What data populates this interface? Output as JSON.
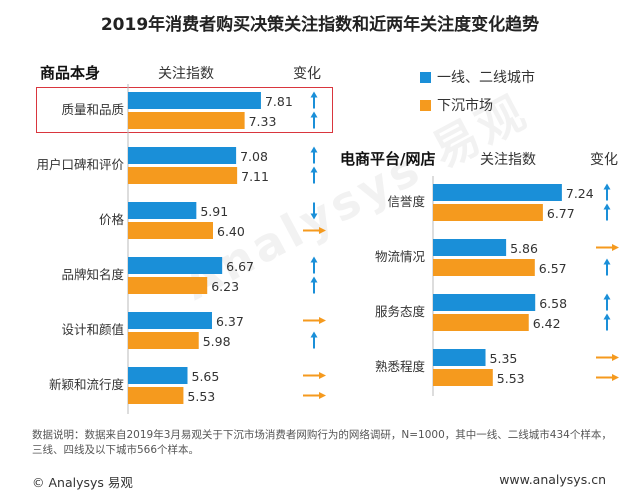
{
  "title": "2019年消费者购买决策关注指数和近两年关注度变化趋势",
  "colors": {
    "tier1": "#1a8fd8",
    "lower": "#f59a1e",
    "up": "#1a8fd8",
    "flat": "#f59a1e",
    "down": "#1a8fd8",
    "highlight": "#d9363e"
  },
  "legend": {
    "tier1": "一线、二线城市",
    "lower": "下沉市场"
  },
  "left_panel": {
    "heading": "商品本身",
    "col_index": "关注指数",
    "col_change": "变化"
  },
  "right_panel": {
    "heading": "电商平台/网店",
    "col_index": "关注指数",
    "col_change": "变化"
  },
  "chart_data": [
    {
      "type": "bar",
      "categories": [
        "质量和品质",
        "用户口碑和评价",
        "价格",
        "品牌知名度",
        "设计和颜值",
        "新颖和流行度"
      ],
      "series": [
        {
          "name": "一线、二线城市",
          "values": [
            7.81,
            7.08,
            5.91,
            6.67,
            6.37,
            5.65
          ],
          "change": [
            "up",
            "up",
            "down",
            "up",
            "flat",
            "flat"
          ]
        },
        {
          "name": "下沉市场",
          "values": [
            7.33,
            7.11,
            6.4,
            6.23,
            5.98,
            5.53
          ],
          "change": [
            "up",
            "up",
            "flat",
            "up",
            "up",
            "flat"
          ]
        }
      ],
      "highlighted": "质量和品质"
    },
    {
      "type": "bar",
      "categories": [
        "信誉度",
        "物流情况",
        "服务态度",
        "熟悉程度"
      ],
      "series": [
        {
          "name": "一线、二线城市",
          "values": [
            7.24,
            5.86,
            6.58,
            5.35
          ],
          "change": [
            "up",
            "flat",
            "up",
            "flat"
          ]
        },
        {
          "name": "下沉市场",
          "values": [
            6.77,
            6.57,
            6.42,
            5.53
          ],
          "change": [
            "up",
            "up",
            "up",
            "flat"
          ]
        }
      ]
    }
  ],
  "note": "数据说明：数据来自2019年3月易观关于下沉市场消费者网购行为的网络调研，N=1000，其中一线、二线城市434个样本，三线、四线及以下城市566个样本。",
  "footer": {
    "brand": "© Analysys 易观",
    "url": "www.analysys.cn"
  },
  "watermark": "Analysys 易观"
}
